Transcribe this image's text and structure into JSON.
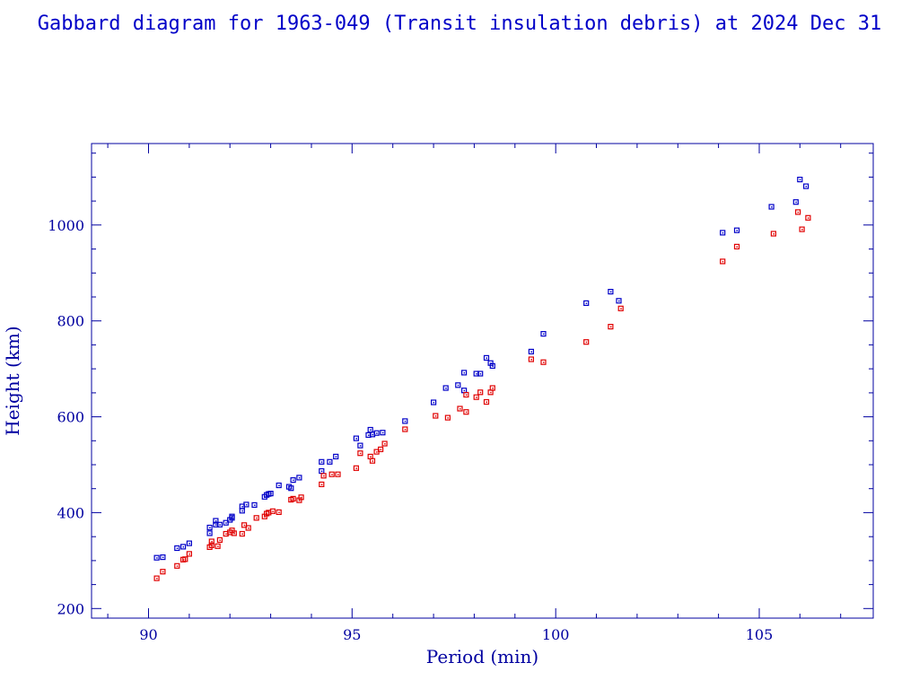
{
  "chart_data": {
    "type": "scatter",
    "title": "Gabbard diagram for 1963-049 (Transit insulation debris) at 2024 Dec 31",
    "xlabel": "Period (min)",
    "ylabel": "Height (km)",
    "xlim": [
      88.6,
      107.8
    ],
    "ylim": [
      180,
      1170
    ],
    "xticks": [
      90,
      95,
      100,
      105
    ],
    "yticks": [
      200,
      400,
      600,
      800,
      1000
    ],
    "grid": false,
    "series": [
      {
        "color": "#0000c8",
        "points": [
          [
            90.2,
            306
          ],
          [
            90.35,
            307
          ],
          [
            90.7,
            326
          ],
          [
            90.85,
            329
          ],
          [
            91.0,
            336
          ],
          [
            91.5,
            357
          ],
          [
            91.5,
            369
          ],
          [
            91.65,
            375
          ],
          [
            91.65,
            383
          ],
          [
            91.75,
            375
          ],
          [
            91.9,
            379
          ],
          [
            92.0,
            385
          ],
          [
            92.05,
            389
          ],
          [
            92.05,
            392
          ],
          [
            92.3,
            413
          ],
          [
            92.3,
            404
          ],
          [
            92.4,
            417
          ],
          [
            92.6,
            416
          ],
          [
            92.85,
            433
          ],
          [
            92.9,
            437
          ],
          [
            92.95,
            439
          ],
          [
            93.0,
            440
          ],
          [
            93.2,
            457
          ],
          [
            93.45,
            454
          ],
          [
            93.5,
            451
          ],
          [
            93.55,
            468
          ],
          [
            93.7,
            473
          ],
          [
            94.25,
            487
          ],
          [
            94.25,
            506
          ],
          [
            94.45,
            506
          ],
          [
            94.6,
            517
          ],
          [
            95.1,
            555
          ],
          [
            95.2,
            540
          ],
          [
            95.4,
            562
          ],
          [
            95.45,
            573
          ],
          [
            95.5,
            563
          ],
          [
            95.6,
            566
          ],
          [
            95.75,
            567
          ],
          [
            96.3,
            591
          ],
          [
            97.0,
            630
          ],
          [
            97.3,
            660
          ],
          [
            97.6,
            666
          ],
          [
            97.75,
            655
          ],
          [
            97.75,
            692
          ],
          [
            98.05,
            690
          ],
          [
            98.15,
            690
          ],
          [
            98.3,
            723
          ],
          [
            98.4,
            712
          ],
          [
            98.45,
            706
          ],
          [
            99.4,
            736
          ],
          [
            99.7,
            773
          ],
          [
            100.75,
            837
          ],
          [
            101.35,
            861
          ],
          [
            101.55,
            842
          ],
          [
            104.1,
            984
          ],
          [
            104.45,
            989
          ],
          [
            105.3,
            1038
          ],
          [
            105.9,
            1048
          ],
          [
            106.0,
            1095
          ],
          [
            106.15,
            1081
          ]
        ]
      },
      {
        "color": "#e00000",
        "points": [
          [
            90.2,
            263
          ],
          [
            90.35,
            277
          ],
          [
            90.7,
            289
          ],
          [
            90.85,
            302
          ],
          [
            90.9,
            303
          ],
          [
            91.0,
            314
          ],
          [
            91.5,
            328
          ],
          [
            91.55,
            332
          ],
          [
            91.55,
            340
          ],
          [
            91.7,
            330
          ],
          [
            91.75,
            343
          ],
          [
            91.9,
            356
          ],
          [
            92.0,
            359
          ],
          [
            92.05,
            363
          ],
          [
            92.1,
            357
          ],
          [
            92.3,
            356
          ],
          [
            92.35,
            374
          ],
          [
            92.45,
            368
          ],
          [
            92.65,
            389
          ],
          [
            92.85,
            392
          ],
          [
            92.9,
            398
          ],
          [
            92.95,
            400
          ],
          [
            93.05,
            403
          ],
          [
            93.2,
            401
          ],
          [
            93.5,
            427
          ],
          [
            93.55,
            429
          ],
          [
            93.7,
            426
          ],
          [
            93.75,
            432
          ],
          [
            94.25,
            459
          ],
          [
            94.3,
            477
          ],
          [
            94.5,
            480
          ],
          [
            94.65,
            480
          ],
          [
            95.1,
            493
          ],
          [
            95.2,
            524
          ],
          [
            95.45,
            517
          ],
          [
            95.5,
            508
          ],
          [
            95.6,
            527
          ],
          [
            95.7,
            532
          ],
          [
            95.8,
            544
          ],
          [
            96.3,
            574
          ],
          [
            97.05,
            602
          ],
          [
            97.35,
            598
          ],
          [
            97.65,
            617
          ],
          [
            97.8,
            610
          ],
          [
            97.8,
            646
          ],
          [
            98.05,
            641
          ],
          [
            98.15,
            651
          ],
          [
            98.3,
            631
          ],
          [
            98.4,
            651
          ],
          [
            98.45,
            660
          ],
          [
            99.4,
            720
          ],
          [
            99.7,
            714
          ],
          [
            100.75,
            756
          ],
          [
            101.35,
            788
          ],
          [
            101.6,
            826
          ],
          [
            104.1,
            924
          ],
          [
            104.45,
            955
          ],
          [
            105.35,
            982
          ],
          [
            105.95,
            1027
          ],
          [
            106.05,
            991
          ],
          [
            106.2,
            1015
          ]
        ]
      }
    ]
  }
}
